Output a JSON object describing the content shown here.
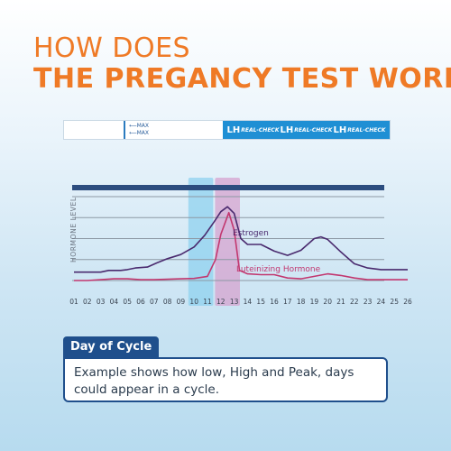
{
  "heading": {
    "line1": "HOW DOES",
    "line2": "THE PREGANCY TEST WORK"
  },
  "test_strip": {
    "max_label_1": "MAX",
    "max_label_2": "MAX",
    "lh_label": "LH",
    "brand_label": "REAL-CHECK"
  },
  "chart_data": {
    "type": "line",
    "ylabel": "HORMONE LEVEL",
    "xlabel": "",
    "x": [
      1,
      2,
      3,
      4,
      5,
      6,
      7,
      8,
      9,
      10,
      11,
      12,
      13,
      14,
      15,
      16,
      17,
      18,
      19,
      20,
      21,
      22,
      23,
      24,
      25,
      26
    ],
    "x_tick_labels": [
      "01",
      "02",
      "03",
      "04",
      "05",
      "06",
      "07",
      "08",
      "09",
      "10",
      "11",
      "12",
      "13",
      "14",
      "15",
      "16",
      "17",
      "18",
      "19",
      "20",
      "21",
      "22",
      "23",
      "24",
      "25",
      "26"
    ],
    "ylim": [
      0,
      10
    ],
    "grid": true,
    "series": [
      {
        "name": "Estrogen",
        "color": "#4a2a6e",
        "points": [
          [
            1,
            1.0
          ],
          [
            2,
            1.0
          ],
          [
            3,
            1.0
          ],
          [
            3.6,
            1.2
          ],
          [
            4.5,
            1.2
          ],
          [
            5,
            1.3
          ],
          [
            5.6,
            1.5
          ],
          [
            6.5,
            1.6
          ],
          [
            7.2,
            2.1
          ],
          [
            8,
            2.6
          ],
          [
            9,
            3.1
          ],
          [
            10,
            4.0
          ],
          [
            10.8,
            5.4
          ],
          [
            11.5,
            7.0
          ],
          [
            12,
            8.2
          ],
          [
            12.5,
            8.8
          ],
          [
            13,
            8.0
          ],
          [
            13.5,
            5.0
          ],
          [
            14,
            4.3
          ],
          [
            15,
            4.3
          ],
          [
            16,
            3.5
          ],
          [
            17,
            3.0
          ],
          [
            18,
            3.6
          ],
          [
            19,
            5.0
          ],
          [
            19.5,
            5.2
          ],
          [
            20,
            4.9
          ],
          [
            21,
            3.4
          ],
          [
            22,
            2.0
          ],
          [
            23,
            1.5
          ],
          [
            24,
            1.3
          ],
          [
            25,
            1.3
          ],
          [
            26,
            1.3
          ]
        ]
      },
      {
        "name": "Luteinizing Hormone",
        "color": "#c2376f",
        "points": [
          [
            1,
            0.0
          ],
          [
            2,
            0.0
          ],
          [
            3,
            0.1
          ],
          [
            4,
            0.2
          ],
          [
            5,
            0.2
          ],
          [
            6,
            0.1
          ],
          [
            7,
            0.1
          ],
          [
            8,
            0.15
          ],
          [
            9,
            0.2
          ],
          [
            10,
            0.25
          ],
          [
            11,
            0.5
          ],
          [
            11.6,
            2.5
          ],
          [
            12,
            5.5
          ],
          [
            12.6,
            8.1
          ],
          [
            13,
            6.0
          ],
          [
            13.4,
            1.2
          ],
          [
            14,
            0.8
          ],
          [
            15,
            0.7
          ],
          [
            16,
            0.7
          ],
          [
            17,
            0.3
          ],
          [
            18,
            0.2
          ],
          [
            19,
            0.5
          ],
          [
            20,
            0.8
          ],
          [
            21,
            0.6
          ],
          [
            22,
            0.3
          ],
          [
            23,
            0.1
          ],
          [
            24,
            0.1
          ],
          [
            25,
            0.1
          ],
          [
            26,
            0.1
          ]
        ]
      }
    ],
    "highlights": [
      {
        "days": [
          10,
          11
        ],
        "color": "#8fd1ef"
      },
      {
        "days": [
          12,
          13
        ],
        "color": "#d5a3cf"
      }
    ]
  },
  "info_box": {
    "label": "Day of Cycle",
    "text": "Example shows how low, High and Peak, days could appear in a cycle."
  }
}
